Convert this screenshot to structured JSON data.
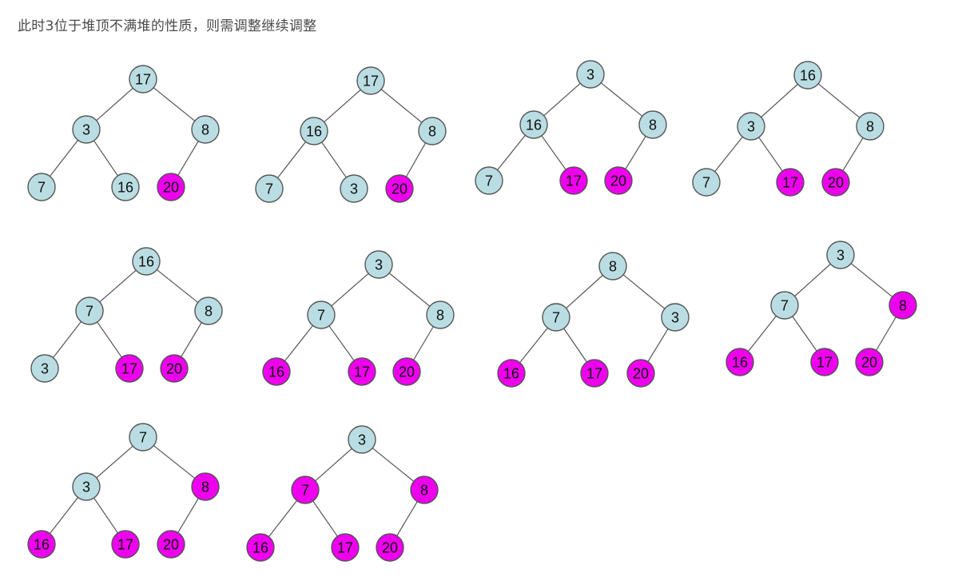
{
  "caption": "此时3位于堆顶不满堆的性质，则需调整继续调整",
  "colors": {
    "heap_node": "#b9dde2",
    "sorted_node": "#ee00ee",
    "stroke": "#555555",
    "edge": "#555555"
  },
  "trees": [
    {
      "values": [
        "17",
        "3",
        "8",
        "7",
        "16",
        "20"
      ],
      "sorted": [
        false,
        false,
        false,
        false,
        false,
        true
      ]
    },
    {
      "values": [
        "17",
        "16",
        "8",
        "7",
        "3",
        "20"
      ],
      "sorted": [
        false,
        false,
        false,
        false,
        false,
        true
      ]
    },
    {
      "values": [
        "3",
        "16",
        "8",
        "7",
        "17",
        "20"
      ],
      "sorted": [
        false,
        false,
        false,
        false,
        true,
        true
      ]
    },
    {
      "values": [
        "16",
        "3",
        "8",
        "7",
        "17",
        "20"
      ],
      "sorted": [
        false,
        false,
        false,
        false,
        true,
        true
      ]
    },
    {
      "values": [
        "16",
        "7",
        "8",
        "3",
        "17",
        "20"
      ],
      "sorted": [
        false,
        false,
        false,
        false,
        true,
        true
      ]
    },
    {
      "values": [
        "3",
        "7",
        "8",
        "16",
        "17",
        "20"
      ],
      "sorted": [
        false,
        false,
        false,
        true,
        true,
        true
      ]
    },
    {
      "values": [
        "8",
        "7",
        "3",
        "16",
        "17",
        "20"
      ],
      "sorted": [
        false,
        false,
        false,
        true,
        true,
        true
      ]
    },
    {
      "values": [
        "3",
        "7",
        "8",
        "16",
        "17",
        "20"
      ],
      "sorted": [
        false,
        false,
        true,
        true,
        true,
        true
      ]
    },
    {
      "values": [
        "7",
        "3",
        "8",
        "16",
        "17",
        "20"
      ],
      "sorted": [
        false,
        false,
        true,
        true,
        true,
        true
      ]
    },
    {
      "values": [
        "3",
        "7",
        "8",
        "16",
        "17",
        "20"
      ],
      "sorted": [
        false,
        true,
        true,
        true,
        true,
        true
      ]
    }
  ]
}
